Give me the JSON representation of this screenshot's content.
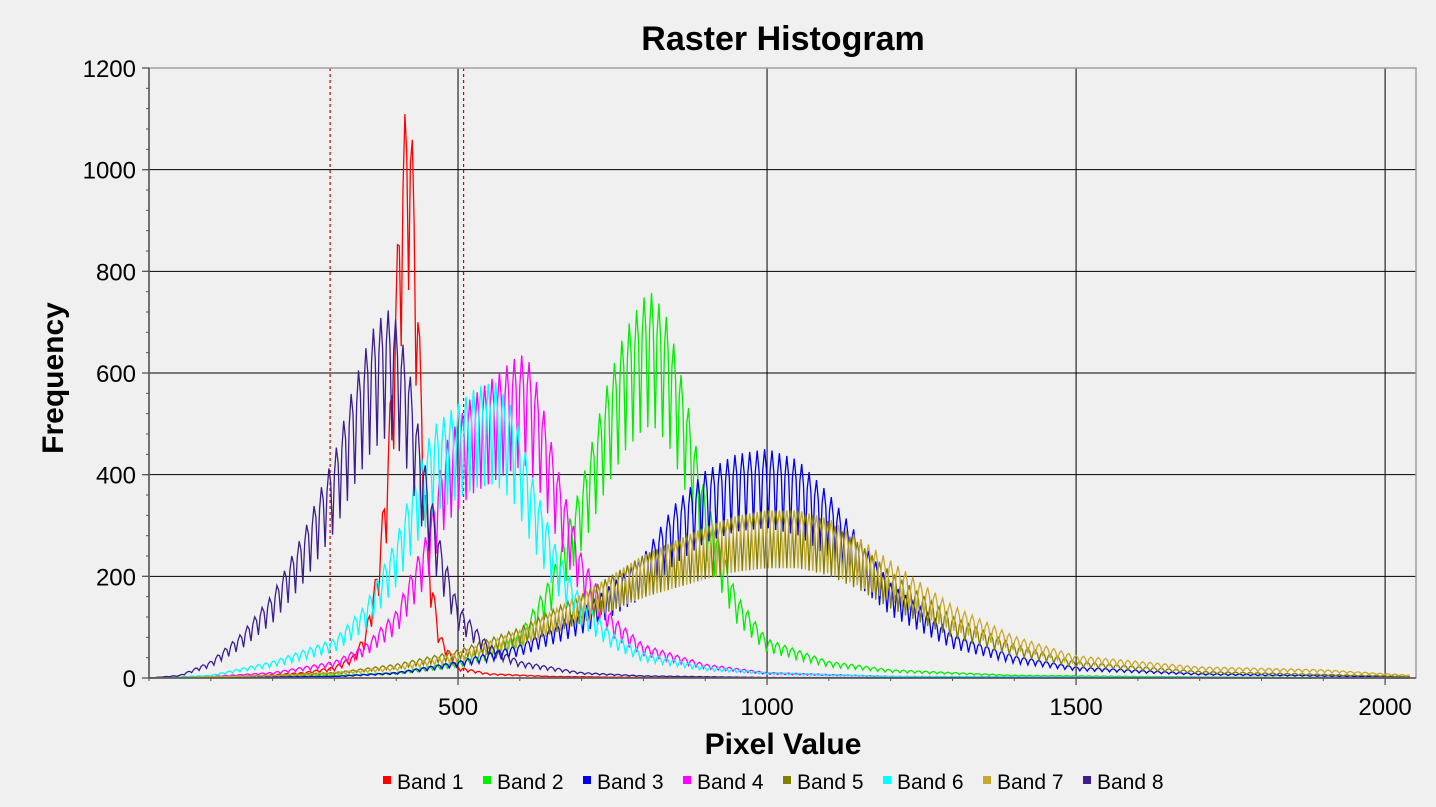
{
  "chart_data": {
    "type": "line",
    "title": "Raster Histogram",
    "xlabel": "Pixel Value",
    "ylabel": "Frequency",
    "xlim": [
      0,
      2050
    ],
    "ylim": [
      0,
      1200
    ],
    "x_ticks": [
      500,
      1000,
      1500,
      2000
    ],
    "x_tick_labels": [
      "500",
      "1000",
      "1500",
      "2000"
    ],
    "y_ticks": [
      0,
      200,
      400,
      600,
      800,
      1000,
      1200
    ],
    "y_tick_labels": [
      "0",
      "200",
      "400",
      "600",
      "800",
      "1000",
      "1200"
    ],
    "grid": true,
    "legend_position": "bottom",
    "markers": [
      {
        "x": 293,
        "color": "#cc0000",
        "style": "dashed"
      },
      {
        "x": 509,
        "color": "#cc0000",
        "style": "dashed"
      }
    ],
    "series": [
      {
        "name": "Band 1",
        "color": "#ff0000",
        "x": [
          0,
          150,
          250,
          300,
          330,
          350,
          370,
          385,
          395,
          405,
          413,
          420,
          428,
          435,
          445,
          455,
          470,
          500,
          550,
          650,
          800,
          1200,
          2040
        ],
        "y": [
          0,
          2,
          10,
          20,
          40,
          80,
          200,
          380,
          600,
          850,
          1000,
          1060,
          930,
          700,
          400,
          200,
          80,
          20,
          8,
          3,
          1,
          0,
          0
        ]
      },
      {
        "name": "Band 2",
        "color": "#00ee00",
        "x": [
          0,
          200,
          300,
          400,
          500,
          600,
          650,
          700,
          740,
          770,
          800,
          815,
          840,
          870,
          900,
          950,
          1000,
          1100,
          1200,
          1400,
          1700,
          2040
        ],
        "y": [
          0,
          3,
          5,
          10,
          30,
          80,
          180,
          350,
          520,
          620,
          680,
          690,
          640,
          500,
          330,
          150,
          70,
          30,
          15,
          5,
          2,
          0
        ]
      },
      {
        "name": "Band 3",
        "color": "#0000ee",
        "x": [
          0,
          300,
          400,
          500,
          600,
          700,
          800,
          850,
          900,
          950,
          1000,
          1050,
          1100,
          1150,
          1200,
          1300,
          1400,
          1500,
          1700,
          2040
        ],
        "y": [
          0,
          3,
          10,
          30,
          60,
          120,
          220,
          310,
          370,
          400,
          410,
          390,
          330,
          250,
          170,
          80,
          40,
          20,
          8,
          2
        ]
      },
      {
        "name": "Band 4",
        "color": "#ff00ff",
        "x": [
          0,
          100,
          200,
          300,
          350,
          400,
          450,
          480,
          520,
          560,
          590,
          610,
          630,
          660,
          700,
          750,
          800,
          900,
          1000,
          1200,
          2040
        ],
        "y": [
          0,
          3,
          10,
          30,
          60,
          120,
          260,
          420,
          500,
          540,
          570,
          580,
          520,
          380,
          220,
          110,
          60,
          25,
          10,
          3,
          0
        ]
      },
      {
        "name": "Band 5",
        "color": "#808000",
        "x": [
          0,
          200,
          300,
          400,
          500,
          600,
          700,
          800,
          900,
          950,
          1000,
          1050,
          1100,
          1150,
          1200,
          1300,
          1400,
          1500,
          1700,
          2040
        ],
        "y": [
          0,
          5,
          10,
          25,
          50,
          90,
          150,
          220,
          270,
          290,
          300,
          300,
          280,
          240,
          190,
          110,
          60,
          30,
          12,
          3
        ]
      },
      {
        "name": "Band 6",
        "color": "#00ffff",
        "x": [
          0,
          100,
          200,
          300,
          350,
          400,
          430,
          460,
          500,
          530,
          560,
          590,
          620,
          660,
          700,
          750,
          800,
          900,
          1000,
          1200,
          2040
        ],
        "y": [
          0,
          5,
          30,
          70,
          130,
          250,
          360,
          450,
          490,
          520,
          530,
          480,
          360,
          230,
          140,
          80,
          45,
          20,
          10,
          3,
          0
        ]
      },
      {
        "name": "Band 7",
        "color": "#c8a82c",
        "x": [
          0,
          200,
          300,
          400,
          500,
          600,
          700,
          800,
          900,
          950,
          1000,
          1050,
          1100,
          1150,
          1200,
          1300,
          1400,
          1500,
          1700,
          1900,
          2040
        ],
        "y": [
          0,
          5,
          10,
          20,
          45,
          85,
          150,
          220,
          270,
          290,
          300,
          300,
          285,
          250,
          210,
          130,
          75,
          40,
          20,
          15,
          5
        ]
      },
      {
        "name": "Band 8",
        "color": "#3c1e8c",
        "x": [
          0,
          50,
          100,
          150,
          200,
          250,
          300,
          330,
          360,
          385,
          400,
          420,
          440,
          470,
          500,
          550,
          600,
          700,
          800,
          1000,
          2040
        ],
        "y": [
          0,
          5,
          30,
          80,
          150,
          260,
          400,
          520,
          620,
          660,
          640,
          560,
          420,
          250,
          130,
          60,
          30,
          10,
          4,
          1,
          0
        ]
      }
    ]
  }
}
